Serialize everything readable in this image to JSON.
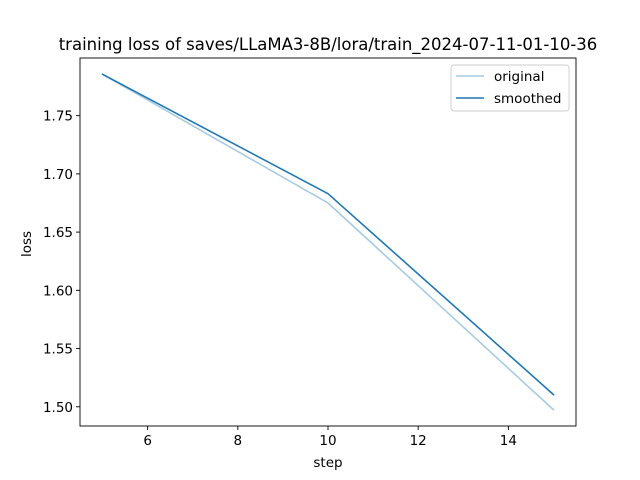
{
  "chart_data": {
    "type": "line",
    "title": "training loss of saves/LLaMA3-8B/lora/train_2024-07-11-01-10-36",
    "xlabel": "step",
    "ylabel": "loss",
    "xlim": [
      4.5,
      15.5
    ],
    "ylim": [
      1.4835,
      1.7995
    ],
    "xticks": [
      6,
      8,
      10,
      12,
      14
    ],
    "yticks": [
      1.5,
      1.55,
      1.6,
      1.65,
      1.7,
      1.75
    ],
    "xtick_labels": [
      "6",
      "8",
      "10",
      "12",
      "14"
    ],
    "ytick_labels": [
      "1.50",
      "1.55",
      "1.60",
      "1.65",
      "1.70",
      "1.75"
    ],
    "grid": false,
    "legend_position": "top-right",
    "x": [
      5,
      10,
      15
    ],
    "series": [
      {
        "name": "original",
        "values": [
          1.7855,
          1.675,
          1.4975
        ],
        "color": "#a6cbe3"
      },
      {
        "name": "smoothed",
        "values": [
          1.7855,
          1.683,
          1.5105
        ],
        "color": "#1f77b4"
      }
    ]
  }
}
